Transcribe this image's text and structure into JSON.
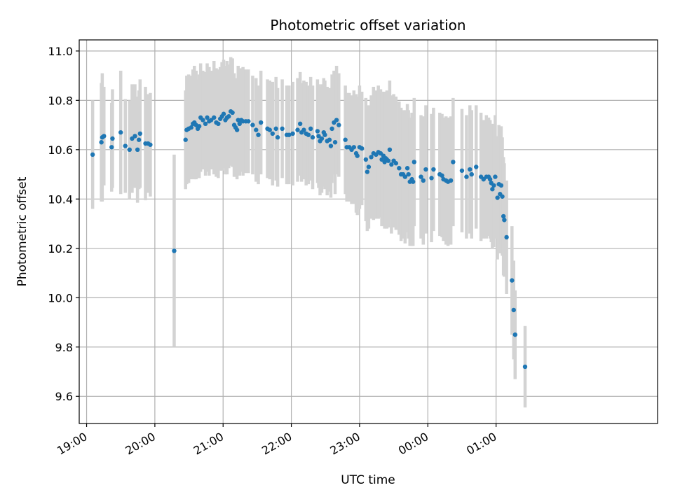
{
  "chart_data": {
    "type": "scatter",
    "title": "Photometric offset variation",
    "xlabel": "UTC time",
    "ylabel": "Photometric offset",
    "x_is_time": true,
    "x_range_minutes": [
      -13,
      1004
    ],
    "ylim": [
      9.49,
      11.045
    ],
    "grid": true,
    "x_ticks": [
      {
        "minute": 0,
        "label": "19:00"
      },
      {
        "minute": 120,
        "label": "20:00"
      },
      {
        "minute": 240,
        "label": "21:00"
      },
      {
        "minute": 360,
        "label": "22:00"
      },
      {
        "minute": 480,
        "label": "23:00"
      },
      {
        "minute": 600,
        "label": "00:00"
      },
      {
        "minute": 720,
        "label": "01:00"
      }
    ],
    "y_ticks": [
      {
        "value": 9.6,
        "label": "9.6"
      },
      {
        "value": 9.8,
        "label": "9.8"
      },
      {
        "value": 10.0,
        "label": "10.0"
      },
      {
        "value": 10.2,
        "label": "10.2"
      },
      {
        "value": 10.4,
        "label": "10.4"
      },
      {
        "value": 10.6,
        "label": "10.6"
      },
      {
        "value": 10.8,
        "label": "10.8"
      },
      {
        "value": 11.0,
        "label": "11.0"
      }
    ],
    "colors": {
      "points": "#1f77b4",
      "errorbars": "#d3d3d3",
      "grid": "#b0b0b0"
    },
    "series": [
      {
        "points": [
          [
            10.6,
            10.58,
            0.22
          ],
          [
            26.0,
            10.63,
            0.24
          ],
          [
            27.5,
            10.65,
            0.26
          ],
          [
            30.5,
            10.655,
            0.2
          ],
          [
            44.0,
            10.61,
            0.18
          ],
          [
            45.5,
            10.645,
            0.2
          ],
          [
            60.0,
            10.67,
            0.25
          ],
          [
            68.0,
            10.615,
            0.19
          ],
          [
            75.5,
            10.6,
            0.2
          ],
          [
            80.0,
            10.645,
            0.22
          ],
          [
            85.0,
            10.655,
            0.21
          ],
          [
            89.5,
            10.6,
            0.215
          ],
          [
            92.0,
            10.64,
            0.2
          ],
          [
            94.0,
            10.665,
            0.22
          ],
          [
            103.5,
            10.625,
            0.23
          ],
          [
            108.0,
            10.625,
            0.2
          ],
          [
            112.0,
            10.62,
            0.21
          ],
          [
            154.0,
            10.19,
            0.39
          ],
          [
            174.0,
            10.64,
            0.2
          ],
          [
            176.0,
            10.68,
            0.22
          ],
          [
            179.5,
            10.685,
            0.22
          ],
          [
            184.0,
            10.69,
            0.21
          ],
          [
            187.0,
            10.705,
            0.22
          ],
          [
            189.5,
            10.71,
            0.23
          ],
          [
            192.5,
            10.7,
            0.22
          ],
          [
            195.5,
            10.685,
            0.2
          ],
          [
            198.0,
            10.695,
            0.21
          ],
          [
            200.5,
            10.73,
            0.22
          ],
          [
            204.5,
            10.72,
            0.2
          ],
          [
            209.0,
            10.705,
            0.21
          ],
          [
            212.0,
            10.73,
            0.22
          ],
          [
            215.5,
            10.715,
            0.22
          ],
          [
            219.0,
            10.72,
            0.2
          ],
          [
            224.0,
            10.73,
            0.23
          ],
          [
            228.0,
            10.71,
            0.22
          ],
          [
            231.5,
            10.705,
            0.22
          ],
          [
            235.0,
            10.725,
            0.21
          ],
          [
            238.0,
            10.735,
            0.22
          ],
          [
            241.0,
            10.745,
            0.22
          ],
          [
            244.0,
            10.72,
            0.22
          ],
          [
            247.0,
            10.73,
            0.23
          ],
          [
            250.0,
            10.735,
            0.21
          ],
          [
            253.5,
            10.755,
            0.22
          ],
          [
            256.5,
            10.75,
            0.22
          ],
          [
            259.5,
            10.7,
            0.21
          ],
          [
            262.0,
            10.69,
            0.2
          ],
          [
            264.5,
            10.68,
            0.2
          ],
          [
            266.5,
            10.72,
            0.22
          ],
          [
            269.0,
            10.705,
            0.21
          ],
          [
            272.0,
            10.72,
            0.21
          ],
          [
            275.0,
            10.715,
            0.22
          ],
          [
            280.0,
            10.715,
            0.21
          ],
          [
            284.5,
            10.715,
            0.21
          ],
          [
            292.0,
            10.7,
            0.2
          ],
          [
            298.0,
            10.68,
            0.21
          ],
          [
            302.0,
            10.66,
            0.2
          ],
          [
            306.5,
            10.71,
            0.21
          ],
          [
            318.0,
            10.685,
            0.2
          ],
          [
            322.0,
            10.68,
            0.2
          ],
          [
            327.0,
            10.665,
            0.21
          ],
          [
            333.0,
            10.685,
            0.21
          ],
          [
            336.0,
            10.65,
            0.2
          ],
          [
            344.0,
            10.685,
            0.2
          ],
          [
            352.0,
            10.66,
            0.2
          ],
          [
            356.0,
            10.66,
            0.2
          ],
          [
            362.5,
            10.665,
            0.21
          ],
          [
            371.0,
            10.68,
            0.21
          ],
          [
            375.5,
            10.705,
            0.21
          ],
          [
            378.0,
            10.67,
            0.2
          ],
          [
            382.0,
            10.68,
            0.2
          ],
          [
            386.0,
            10.665,
            0.21
          ],
          [
            390.0,
            10.66,
            0.2
          ],
          [
            394.0,
            10.685,
            0.21
          ],
          [
            397.5,
            10.65,
            0.21
          ],
          [
            406.0,
            10.675,
            0.21
          ],
          [
            408.0,
            10.655,
            0.21
          ],
          [
            410.5,
            10.635,
            0.22
          ],
          [
            413.5,
            10.645,
            0.22
          ],
          [
            417.0,
            10.67,
            0.22
          ],
          [
            419.0,
            10.66,
            0.22
          ],
          [
            423.0,
            10.635,
            0.22
          ],
          [
            427.0,
            10.64,
            0.21
          ],
          [
            429.5,
            10.615,
            0.21
          ],
          [
            431.5,
            10.685,
            0.22
          ],
          [
            435.0,
            10.71,
            0.21
          ],
          [
            437.0,
            10.63,
            0.21
          ],
          [
            439.5,
            10.72,
            0.22
          ],
          [
            443.5,
            10.7,
            0.21
          ],
          [
            455.0,
            10.64,
            0.22
          ],
          [
            457.5,
            10.61,
            0.22
          ],
          [
            462.0,
            10.61,
            0.22
          ],
          [
            466.0,
            10.6,
            0.22
          ],
          [
            470.0,
            10.61,
            0.23
          ],
          [
            474.0,
            10.585,
            0.24
          ],
          [
            476.0,
            10.575,
            0.24
          ],
          [
            480.0,
            10.61,
            0.25
          ],
          [
            484.0,
            10.605,
            0.23
          ],
          [
            491.0,
            10.56,
            0.25
          ],
          [
            493.5,
            10.51,
            0.24
          ],
          [
            496.0,
            10.53,
            0.25
          ],
          [
            500.5,
            10.57,
            0.25
          ],
          [
            504.5,
            10.585,
            0.27
          ],
          [
            509.0,
            10.58,
            0.26
          ],
          [
            513.0,
            10.59,
            0.27
          ],
          [
            517.0,
            10.585,
            0.26
          ],
          [
            519.0,
            10.56,
            0.27
          ],
          [
            522.0,
            10.575,
            0.26
          ],
          [
            524.0,
            10.55,
            0.27
          ],
          [
            526.0,
            10.565,
            0.27
          ],
          [
            528.0,
            10.56,
            0.28
          ],
          [
            530.5,
            10.555,
            0.27
          ],
          [
            533.0,
            10.6,
            0.28
          ],
          [
            536.0,
            10.54,
            0.28
          ],
          [
            540.0,
            10.555,
            0.27
          ],
          [
            544.0,
            10.545,
            0.27
          ],
          [
            549.5,
            10.525,
            0.27
          ],
          [
            553.0,
            10.5,
            0.27
          ],
          [
            556.5,
            10.5,
            0.26
          ],
          [
            560.0,
            10.49,
            0.27
          ],
          [
            564.0,
            10.525,
            0.26
          ],
          [
            566.0,
            10.5,
            0.26
          ],
          [
            568.5,
            10.47,
            0.26
          ],
          [
            572.0,
            10.48,
            0.27
          ],
          [
            574.0,
            10.47,
            0.26
          ],
          [
            576.0,
            10.55,
            0.26
          ],
          [
            588.0,
            10.49,
            0.25
          ],
          [
            592.0,
            10.475,
            0.26
          ],
          [
            596.5,
            10.52,
            0.26
          ],
          [
            606.5,
            10.485,
            0.26
          ],
          [
            610.0,
            10.52,
            0.25
          ],
          [
            621.0,
            10.5,
            0.25
          ],
          [
            625.0,
            10.495,
            0.25
          ],
          [
            627.5,
            10.48,
            0.25
          ],
          [
            632.0,
            10.475,
            0.26
          ],
          [
            635.5,
            10.47,
            0.26
          ],
          [
            640.5,
            10.475,
            0.26
          ],
          [
            644.5,
            10.55,
            0.26
          ],
          [
            660.0,
            10.515,
            0.25
          ],
          [
            668.0,
            10.49,
            0.25
          ],
          [
            674.0,
            10.52,
            0.26
          ],
          [
            677.0,
            10.5,
            0.26
          ],
          [
            685.0,
            10.53,
            0.25
          ],
          [
            693.5,
            10.49,
            0.26
          ],
          [
            698.0,
            10.48,
            0.24
          ],
          [
            703.0,
            10.49,
            0.25
          ],
          [
            707.0,
            10.49,
            0.24
          ],
          [
            709.5,
            10.48,
            0.24
          ],
          [
            711.5,
            10.465,
            0.24
          ],
          [
            713.5,
            10.44,
            0.24
          ],
          [
            716.0,
            10.455,
            0.25
          ],
          [
            718.5,
            10.49,
            0.25
          ],
          [
            722.5,
            10.405,
            0.25
          ],
          [
            725.0,
            10.46,
            0.24
          ],
          [
            727.0,
            10.42,
            0.24
          ],
          [
            729.0,
            10.455,
            0.24
          ],
          [
            731.0,
            10.41,
            0.24
          ],
          [
            733.0,
            10.33,
            0.24
          ],
          [
            734.5,
            10.315,
            0.23
          ],
          [
            738.5,
            10.245,
            0.23
          ],
          [
            748.0,
            10.07,
            0.22
          ],
          [
            751.0,
            9.95,
            0.2
          ],
          [
            753.5,
            9.85,
            0.18
          ],
          [
            771.0,
            9.72,
            0.165
          ]
        ]
      }
    ]
  }
}
